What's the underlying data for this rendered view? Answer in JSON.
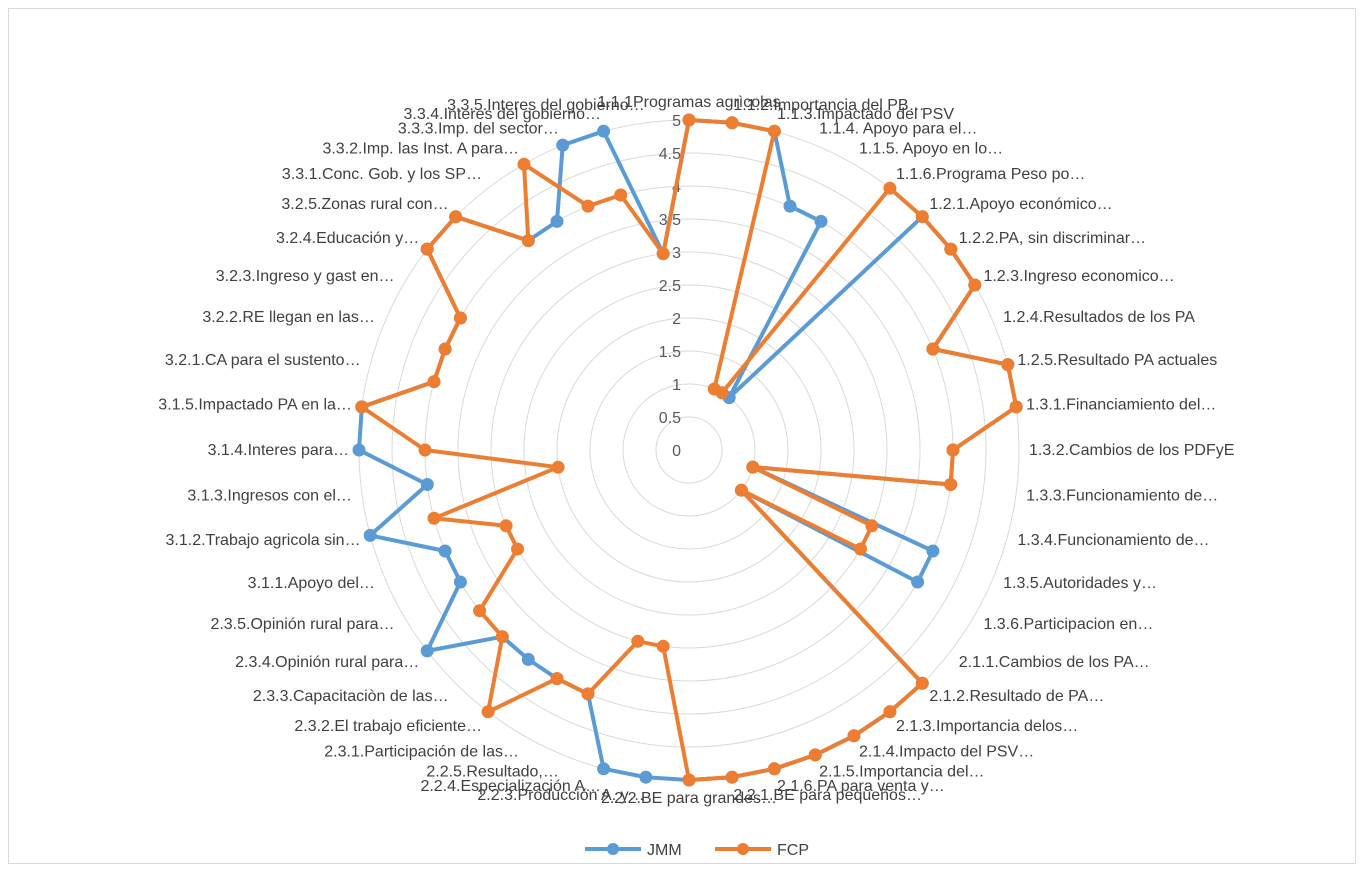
{
  "chart_data": {
    "type": "radar",
    "title": "",
    "rmin": 0,
    "rmax": 5,
    "ticks": [
      "0",
      "0.5",
      "1",
      "1.5",
      "2",
      "2.5",
      "3",
      "3.5",
      "4",
      "4.5",
      "5"
    ],
    "grid": true,
    "legend_position": "bottom",
    "categories": [
      "1.1.1Programas agrìcolas",
      "1.1.2.Importancia del PB…",
      "1.1.3.Impactado del PSV",
      "1.1.4. Apoyo para el…",
      "1.1.5. Apoyo en lo…",
      "1.1.6.Programa Peso po…",
      "1.2.1.Apoyo económico…",
      "1.2.2.PA, sin discriminar…",
      "1.2.3.Ingreso economico…",
      "1.2.4.Resultados de los PA",
      "1.2.5.Resultado PA actuales",
      "1.3.1.Financiamiento del…",
      "1.3.2.Cambios de los PDFyE",
      "1.3.3.Funcionamiento de…",
      "1.3.4.Funcionamiento de…",
      "1.3.5.Autoridades y…",
      "1.3.6.Participacion en…",
      "2.1.1.Cambios de los PA…",
      "2.1.2.Resultado de PA…",
      "2.1.3.Importancia delos…",
      "2.1.4.Impacto del PSV…",
      "2.1.5.Importancia del…",
      "2.1.6.PA para venta y…",
      "2.2.1.BE para pequeños…",
      "2.2.2.BE para grandes…",
      "2.2.3.Producción A. y…",
      "2.2.4.Especialización A…",
      "2.2.5.Resultado,…",
      "2.3.1.Participación de las…",
      "2.3.2.El trabajo eficiente…",
      "2.3.3.Capacitaciòn de las…",
      "2.3.4.Opinión rural para…",
      "2.3.5.Opinión rural para…",
      "3.1.1.Apoyo del…",
      "3.1.2.Trabajo agricola sin…",
      "3.1.3.Ingresos con el…",
      "3.1.4.Interes para…",
      "3.1.5.Impactado PA en la…",
      "3.2.1.CA para el sustento…",
      "3.2.2.RE llegan en las…",
      "3.2.3.Ingreso y gast en…",
      "3.2.4.Educación y…",
      "3.2.5.Zonas rural con…",
      "3.3.1.Conc. Gob. y los SP…",
      "3.3.2.Imp. las Inst. A para…",
      "3.3.3.Imp. del sector…",
      "3.3.4.Interes del gobierno…",
      "3.3.5.Interes del gobierno…"
    ],
    "series": [
      {
        "name": "JMM",
        "color": "#5b9bd5",
        "values": [
          5,
          5,
          5,
          4,
          4,
          1,
          5,
          5,
          5,
          4,
          5,
          5,
          4,
          4,
          1,
          4,
          4,
          1,
          5,
          5,
          5,
          5,
          5,
          5,
          5,
          5,
          5,
          4,
          4,
          4,
          4,
          5,
          4,
          4,
          5,
          4,
          5,
          5,
          4,
          4,
          4,
          5,
          5,
          4,
          4,
          5,
          5,
          3
        ]
      },
      {
        "name": "FCP",
        "color": "#ed7d31",
        "values": [
          5,
          5,
          5,
          1,
          1,
          5,
          5,
          5,
          5,
          4,
          5,
          5,
          4,
          4,
          1,
          3,
          3,
          1,
          5,
          5,
          5,
          5,
          5,
          5,
          5,
          3,
          3,
          4,
          4,
          5,
          4,
          4,
          3,
          3,
          4,
          2,
          4,
          5,
          4,
          4,
          4,
          5,
          5,
          4,
          5,
          4,
          4,
          3
        ]
      }
    ]
  }
}
